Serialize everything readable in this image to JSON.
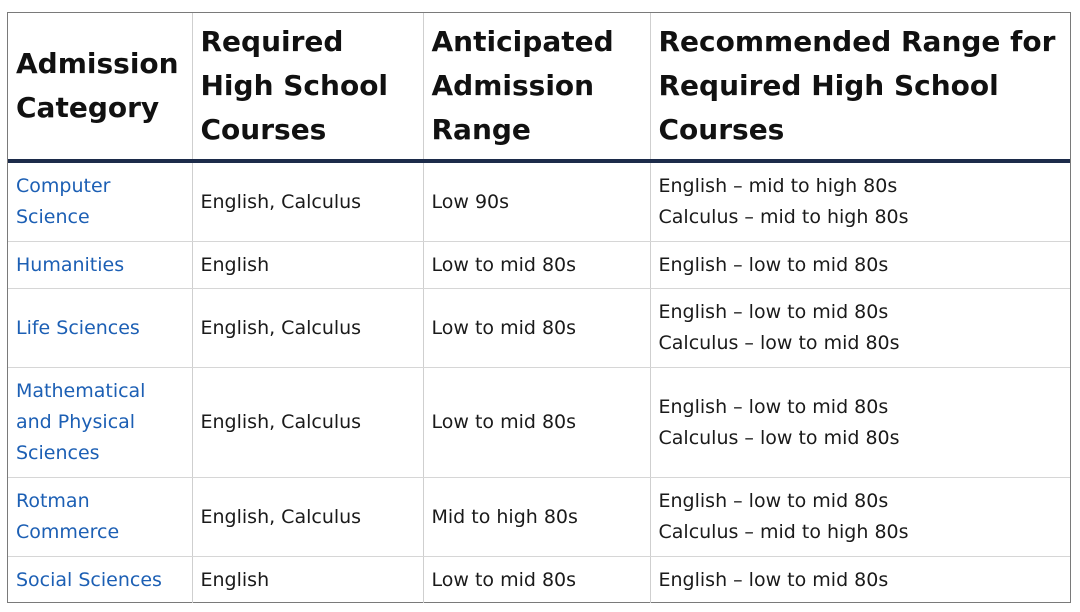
{
  "table": {
    "headers": [
      "Admission Category",
      "Required High School Courses",
      "Anticipated Admission Range",
      "Recommended Range for Required High School Courses"
    ],
    "rows": [
      {
        "category": "Computer Science",
        "courses": "English, Calculus",
        "range": "Low 90s",
        "recommended": [
          "English – mid to high 80s",
          "Calculus – mid to high 80s"
        ]
      },
      {
        "category": "Humanities",
        "courses": "English",
        "range": "Low to mid 80s",
        "recommended": [
          "English – low to mid 80s"
        ]
      },
      {
        "category": "Life Sciences",
        "courses": "English, Calculus",
        "range": "Low to mid 80s",
        "recommended": [
          "English – low to mid 80s",
          "Calculus – low to mid 80s"
        ]
      },
      {
        "category": "Mathematical and Physical Sciences",
        "courses": "English, Calculus",
        "range": "Low to mid 80s",
        "recommended": [
          "English – low to mid 80s",
          "Calculus – low to mid 80s"
        ]
      },
      {
        "category": "Rotman Commerce",
        "courses": "English, Calculus",
        "range": "Mid to high 80s",
        "recommended": [
          "English – low to mid 80s",
          "Calculus – mid to high 80s"
        ]
      },
      {
        "category": "Social Sciences",
        "courses": "English",
        "range": "Low to mid 80s",
        "recommended": [
          "English – low to mid 80s"
        ]
      }
    ]
  },
  "colors": {
    "link": "#1c5fb4",
    "header_rule": "#1c2b4a",
    "grid": "#cfcfcf"
  }
}
